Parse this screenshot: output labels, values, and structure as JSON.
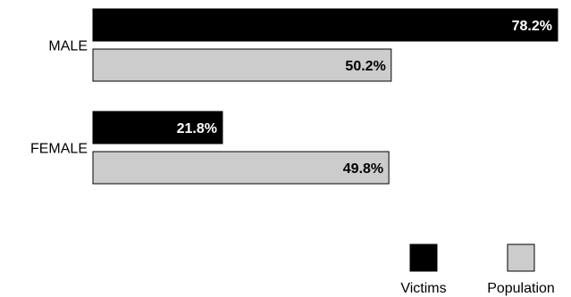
{
  "chart_data": {
    "type": "bar",
    "orientation": "horizontal",
    "categories": [
      "MALE",
      "FEMALE"
    ],
    "series": [
      {
        "name": "Victims",
        "values": [
          78.2,
          21.8
        ],
        "labels": [
          "78.2%",
          "21.8%"
        ],
        "color": "#000000",
        "label_color": "#ffffff"
      },
      {
        "name": "Population",
        "values": [
          50.2,
          49.8
        ],
        "labels": [
          "50.2%",
          "49.8%"
        ],
        "color": "#cccccc",
        "label_color": "#000000"
      }
    ],
    "xlim": [
      0,
      78.2
    ],
    "grid": false,
    "legend_position": "bottom-right"
  }
}
